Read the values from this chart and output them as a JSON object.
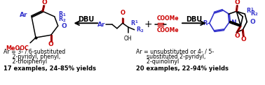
{
  "bg_color": "#ffffff",
  "fig_width": 3.78,
  "fig_height": 1.22,
  "dpi": 100,
  "blue": "#3333cc",
  "red": "#cc0000",
  "blk": "#000000",
  "left_text": [
    [
      "Ar = 3- / 6-substituted",
      2,
      66
    ],
    [
      "     2-pyridyl, phenyl,",
      2,
      74
    ],
    [
      "     2-thoiphenyl",
      2,
      82
    ]
  ],
  "left_bold": [
    "17 examples, 24-85% yields",
    2,
    92
  ],
  "right_text": [
    [
      "Ar = unsubstituted or 4- / 5-",
      192,
      66
    ],
    [
      "      substituted 2-pyridyl,",
      192,
      74
    ],
    [
      "      2-quinolinyl",
      192,
      82
    ]
  ],
  "right_bold": [
    "20 examples, 22-94% yields",
    192,
    92
  ]
}
